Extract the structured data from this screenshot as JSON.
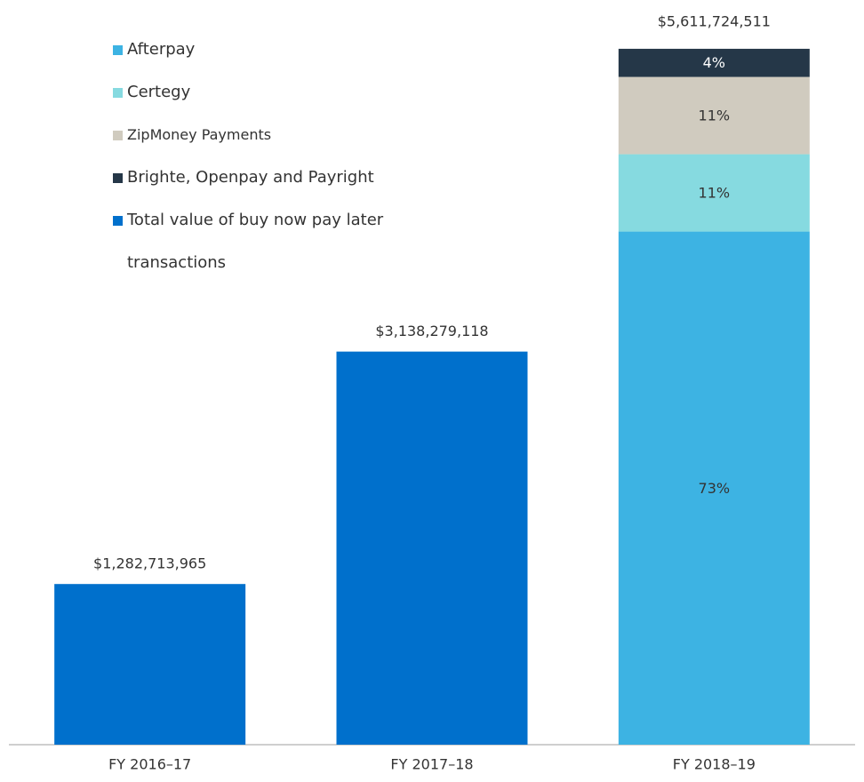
{
  "chart_data": {
    "type": "bar",
    "categories": [
      "FY 2016–17",
      "FY 2017–18",
      "FY 2018–19"
    ],
    "series": [
      {
        "name": "Afterpay",
        "color": "#3db3e3",
        "values": [
          null,
          null,
          73
        ],
        "value_labels": [
          null,
          null,
          "73%"
        ]
      },
      {
        "name": "Certegy",
        "color": "#86dae0",
        "values": [
          null,
          null,
          11
        ],
        "value_labels": [
          null,
          null,
          "11%"
        ]
      },
      {
        "name": "ZipMoney Payments",
        "color": "#d0cbbf",
        "values": [
          null,
          null,
          11
        ],
        "value_labels": [
          null,
          null,
          "11%"
        ]
      },
      {
        "name": "Brighte, Openpay and Payright",
        "color": "#253748",
        "values": [
          null,
          null,
          4
        ],
        "value_labels": [
          null,
          null,
          "4%"
        ]
      },
      {
        "name": "Total value of buy now pay later transactions",
        "color": "#0070cc",
        "values": [
          1282713965,
          3138279118,
          5611724511
        ],
        "value_labels": [
          "$1,282,713,965",
          "$3,138,279,118",
          "$5,611,724,511"
        ]
      }
    ],
    "legend": "upper left"
  }
}
